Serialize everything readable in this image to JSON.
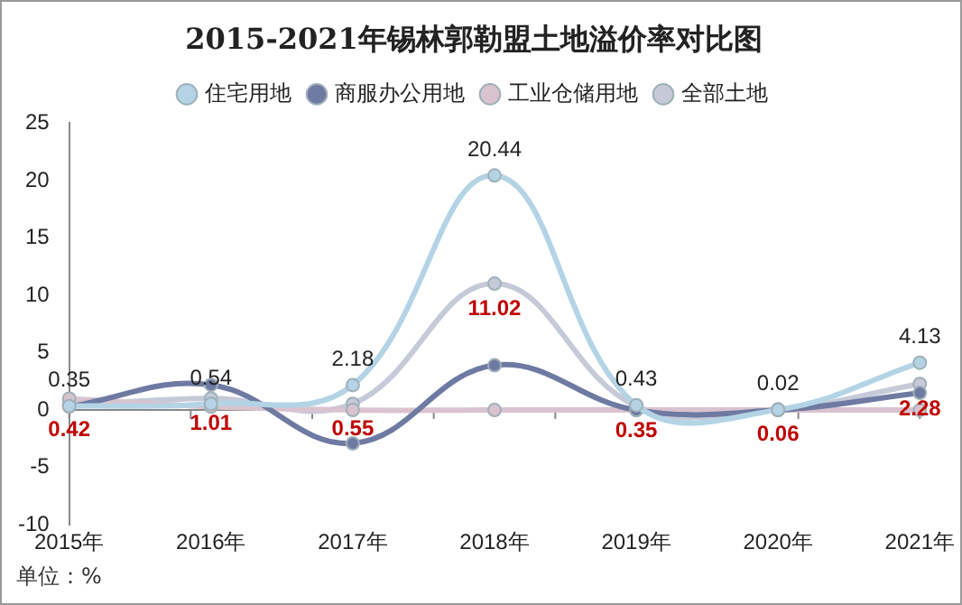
{
  "chart_data": {
    "type": "line",
    "title": "2015-2021年锡林郭勒盟土地溢价率对比图",
    "categories": [
      "2015年",
      "2016年",
      "2017年",
      "2018年",
      "2019年",
      "2020年",
      "2021年"
    ],
    "series": [
      {
        "name": "住宅用地",
        "color": "#b4d4e6",
        "values": [
          0.35,
          0.54,
          2.18,
          20.44,
          0.43,
          0.02,
          4.13
        ],
        "value_labels": [
          "0.35",
          "0.54",
          "2.18",
          "20.44",
          "0.43",
          "0.02",
          "4.13"
        ]
      },
      {
        "name": "商服办公用地",
        "color": "#6e7aa2",
        "values": [
          0.3,
          2.2,
          -2.9,
          3.9,
          0,
          0,
          1.5
        ]
      },
      {
        "name": "工业仓储用地",
        "color": "#d9c3cf",
        "values": [
          1.0,
          0.3,
          0,
          0,
          0,
          0,
          0
        ]
      },
      {
        "name": "全部土地",
        "color": "#c6cad8",
        "values": [
          0.42,
          1.01,
          0.55,
          11.02,
          0.35,
          0.06,
          2.28
        ],
        "value_labels": [
          "0.42",
          "1.01",
          "0.55",
          "11.02",
          "0.35",
          "0.06",
          "2.28"
        ]
      }
    ],
    "ylim": [
      -10,
      25
    ],
    "yticks": [
      -10,
      -5,
      0,
      5,
      10,
      15,
      20,
      25
    ],
    "grid": false,
    "legend": "top",
    "marker": "circle",
    "line_style": "solid",
    "annotations": [
      "单位：%"
    ]
  }
}
